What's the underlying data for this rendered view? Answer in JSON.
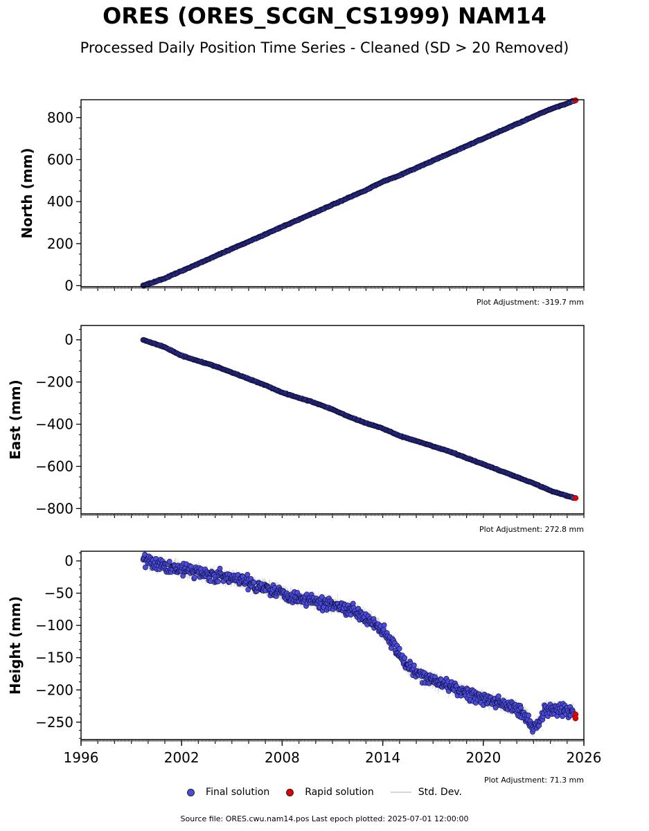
{
  "header": {
    "title": "ORES (ORES_SCGN_CS1999) NAM14",
    "subtitle": "Processed Daily Position Time Series - Cleaned (SD > 20 Removed)"
  },
  "legend": {
    "final_label": "Final solution",
    "rapid_label": "Rapid solution",
    "std_label": "Std. Dev."
  },
  "footer": {
    "text": "Source file: ORES.cwu.nam14.pos  Last epoch plotted: 2025-07-01 12:00:00"
  },
  "colors": {
    "final": "#4b4bdc",
    "final_edge": "#0b0b30",
    "rapid": "#e00000",
    "std": "#d3d3d3"
  },
  "chart_data": [
    {
      "type": "scatter",
      "ylabel": "North (mm)",
      "xlim": [
        1996,
        2026
      ],
      "ylim": [
        -5,
        885
      ],
      "yticks": [
        0,
        200,
        400,
        600,
        800
      ],
      "ytick_labels": [
        "0",
        "200",
        "400",
        "600",
        "800"
      ],
      "adjustment_label": "Plot Adjustment: -319.7 mm",
      "final_solution": {
        "x": [
          1999.7,
          2001,
          2002,
          2003,
          2004,
          2005,
          2006,
          2007,
          2008,
          2009,
          2010,
          2011,
          2012,
          2013,
          2014,
          2015,
          2016,
          2017,
          2018,
          2019,
          2020,
          2021,
          2022,
          2023,
          2024,
          2025,
          2025.4
        ],
        "y": [
          0,
          35,
          70,
          105,
          140,
          175,
          210,
          245,
          280,
          315,
          350,
          385,
          420,
          455,
          495,
          525,
          560,
          595,
          630,
          665,
          700,
          735,
          770,
          805,
          840,
          868,
          880
        ]
      },
      "rapid_solution": {
        "x": [
          2025.5
        ],
        "y": [
          882
        ]
      }
    },
    {
      "type": "scatter",
      "ylabel": "East (mm)",
      "xlim": [
        1996,
        2026
      ],
      "ylim": [
        -825,
        68
      ],
      "yticks": [
        0,
        -200,
        -400,
        -600,
        -800
      ],
      "ytick_labels": [
        "0",
        "−200",
        "−400",
        "−600",
        "−800"
      ],
      "adjustment_label": "Plot Adjustment: 272.8 mm",
      "final_solution": {
        "x": [
          1999.7,
          2001,
          2002,
          2003,
          2004,
          2005,
          2006,
          2007,
          2008,
          2009,
          2010,
          2011,
          2012,
          2013,
          2014,
          2015,
          2016,
          2017,
          2018,
          2019,
          2020,
          2021,
          2022,
          2023,
          2024,
          2025,
          2025.4
        ],
        "y": [
          0,
          -35,
          -75,
          -100,
          -125,
          -155,
          -185,
          -215,
          -250,
          -275,
          -300,
          -330,
          -365,
          -395,
          -420,
          -455,
          -480,
          -505,
          -530,
          -560,
          -590,
          -620,
          -650,
          -680,
          -715,
          -740,
          -748
        ]
      },
      "rapid_solution": {
        "x": [
          2025.5
        ],
        "y": [
          -750
        ]
      }
    },
    {
      "type": "scatter",
      "ylabel": "Height (mm)",
      "xlim": [
        1996,
        2026
      ],
      "ylim": [
        -277,
        15
      ],
      "yticks": [
        0,
        -50,
        -100,
        -150,
        -200,
        -250
      ],
      "ytick_labels": [
        "0",
        "−50",
        "−100",
        "−150",
        "−200",
        "−250"
      ],
      "xticks": [
        1996,
        2002,
        2008,
        2014,
        2020,
        2026
      ],
      "xtick_labels": [
        "1996",
        "2002",
        "2008",
        "2014",
        "2020",
        "2026"
      ],
      "adjustment_label": "Plot Adjustment: 71.3 mm",
      "final_solution": {
        "x": [
          1999.7,
          2000.5,
          2001.5,
          2002.5,
          2003.5,
          2004.5,
          2005.5,
          2006.5,
          2007.5,
          2008.5,
          2009.5,
          2010.5,
          2011.5,
          2012.5,
          2013.5,
          2014.2,
          2014.8,
          2015.3,
          2016,
          2017,
          2018,
          2019,
          2020,
          2021,
          2022,
          2022.6,
          2023,
          2023.3,
          2023.7,
          2024.2,
          2025,
          2025.4
        ],
        "y": [
          0,
          -5,
          -10,
          -15,
          -20,
          -25,
          -30,
          -38,
          -45,
          -55,
          -60,
          -65,
          -70,
          -80,
          -95,
          -115,
          -135,
          -160,
          -175,
          -185,
          -195,
          -205,
          -215,
          -220,
          -230,
          -240,
          -262,
          -250,
          -230,
          -228,
          -232,
          -234
        ]
      },
      "rapid_solution": {
        "x": [
          2025.5,
          2025.5
        ],
        "y": [
          -238,
          -244
        ]
      }
    }
  ]
}
